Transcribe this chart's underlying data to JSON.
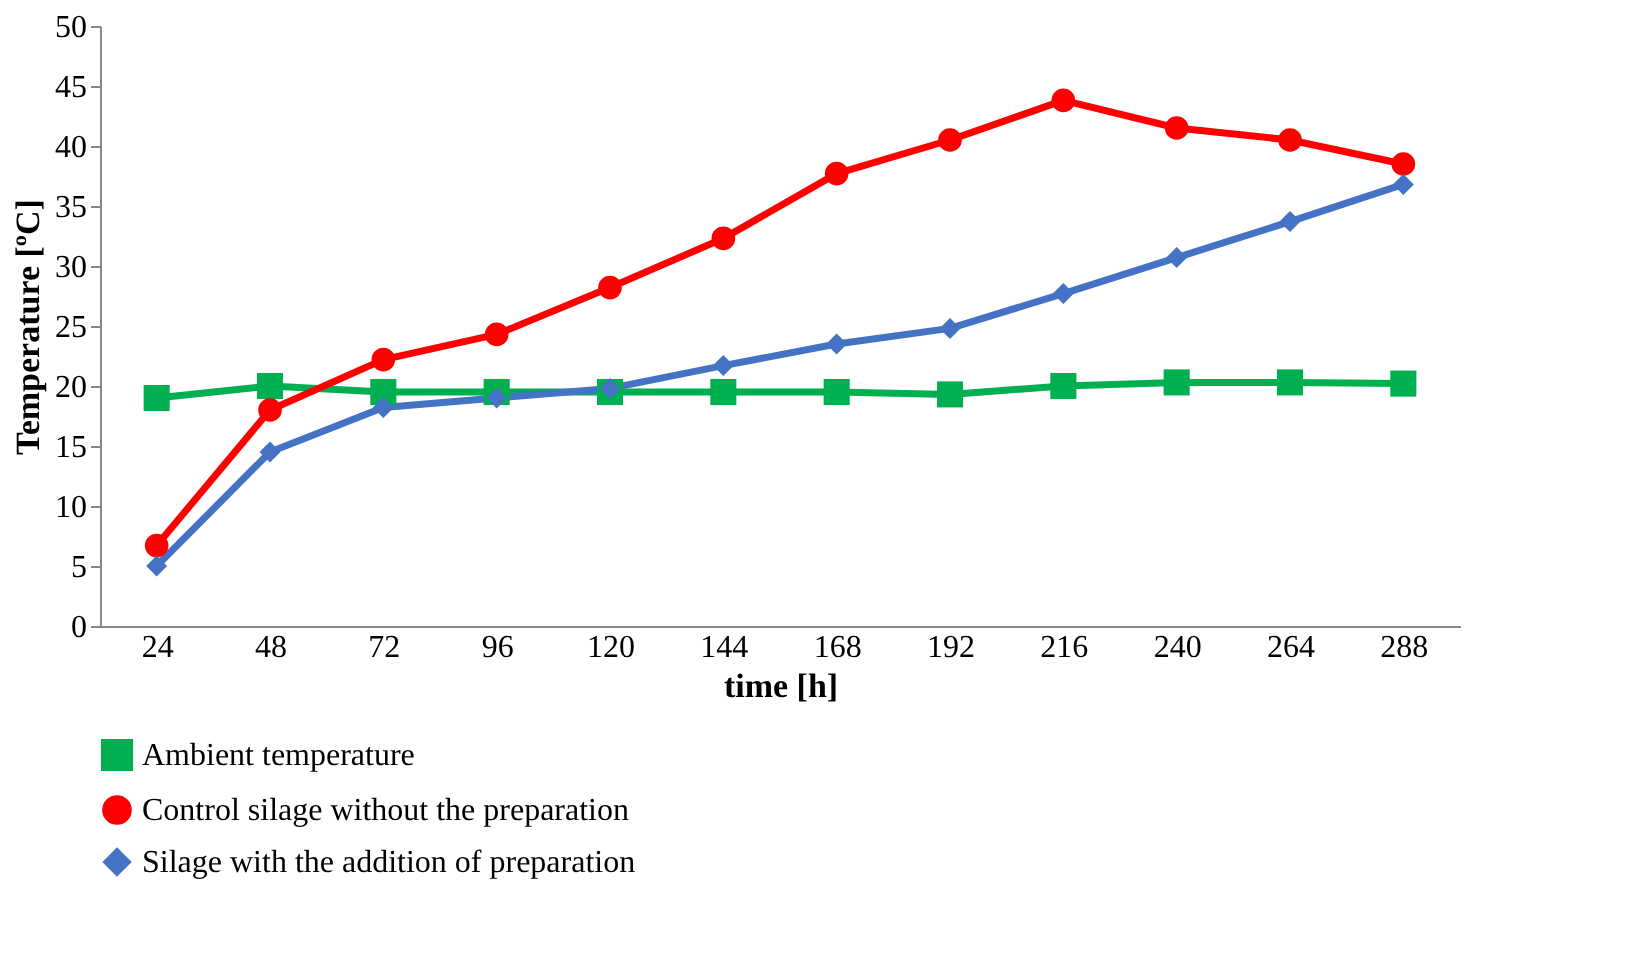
{
  "chart_data": {
    "type": "line",
    "xlabel": "time [h]",
    "ylabel": "Temperature [ºC]",
    "categories": [
      "24",
      "48",
      "72",
      "96",
      "120",
      "144",
      "168",
      "192",
      "216",
      "240",
      "264",
      "288"
    ],
    "ylim": [
      0,
      50
    ],
    "yticks": [
      0,
      5,
      10,
      15,
      20,
      25,
      30,
      35,
      40,
      45,
      50
    ],
    "grid": false,
    "legend": "bottom",
    "line_style": "solid",
    "series": [
      {
        "name": "Ambient temperature",
        "color": "#00b050",
        "marker": "square",
        "values": [
          19,
          20,
          19.5,
          19.5,
          19.5,
          19.5,
          19.5,
          19.3,
          20,
          20.3,
          20.3,
          20.2
        ]
      },
      {
        "name": "Control silage without the preparation",
        "color": "#ff0000",
        "marker": "circle",
        "values": [
          6.7,
          18,
          22.2,
          24.3,
          28.2,
          32.3,
          37.7,
          40.5,
          43.8,
          41.5,
          40.5,
          38.5
        ]
      },
      {
        "name": "Silage with the addition of preparation",
        "color": "#4472c4",
        "marker": "diamond",
        "values": [
          5,
          14.5,
          18.2,
          19,
          19.8,
          21.7,
          23.5,
          24.8,
          27.7,
          30.7,
          33.7,
          36.8
        ]
      }
    ]
  }
}
